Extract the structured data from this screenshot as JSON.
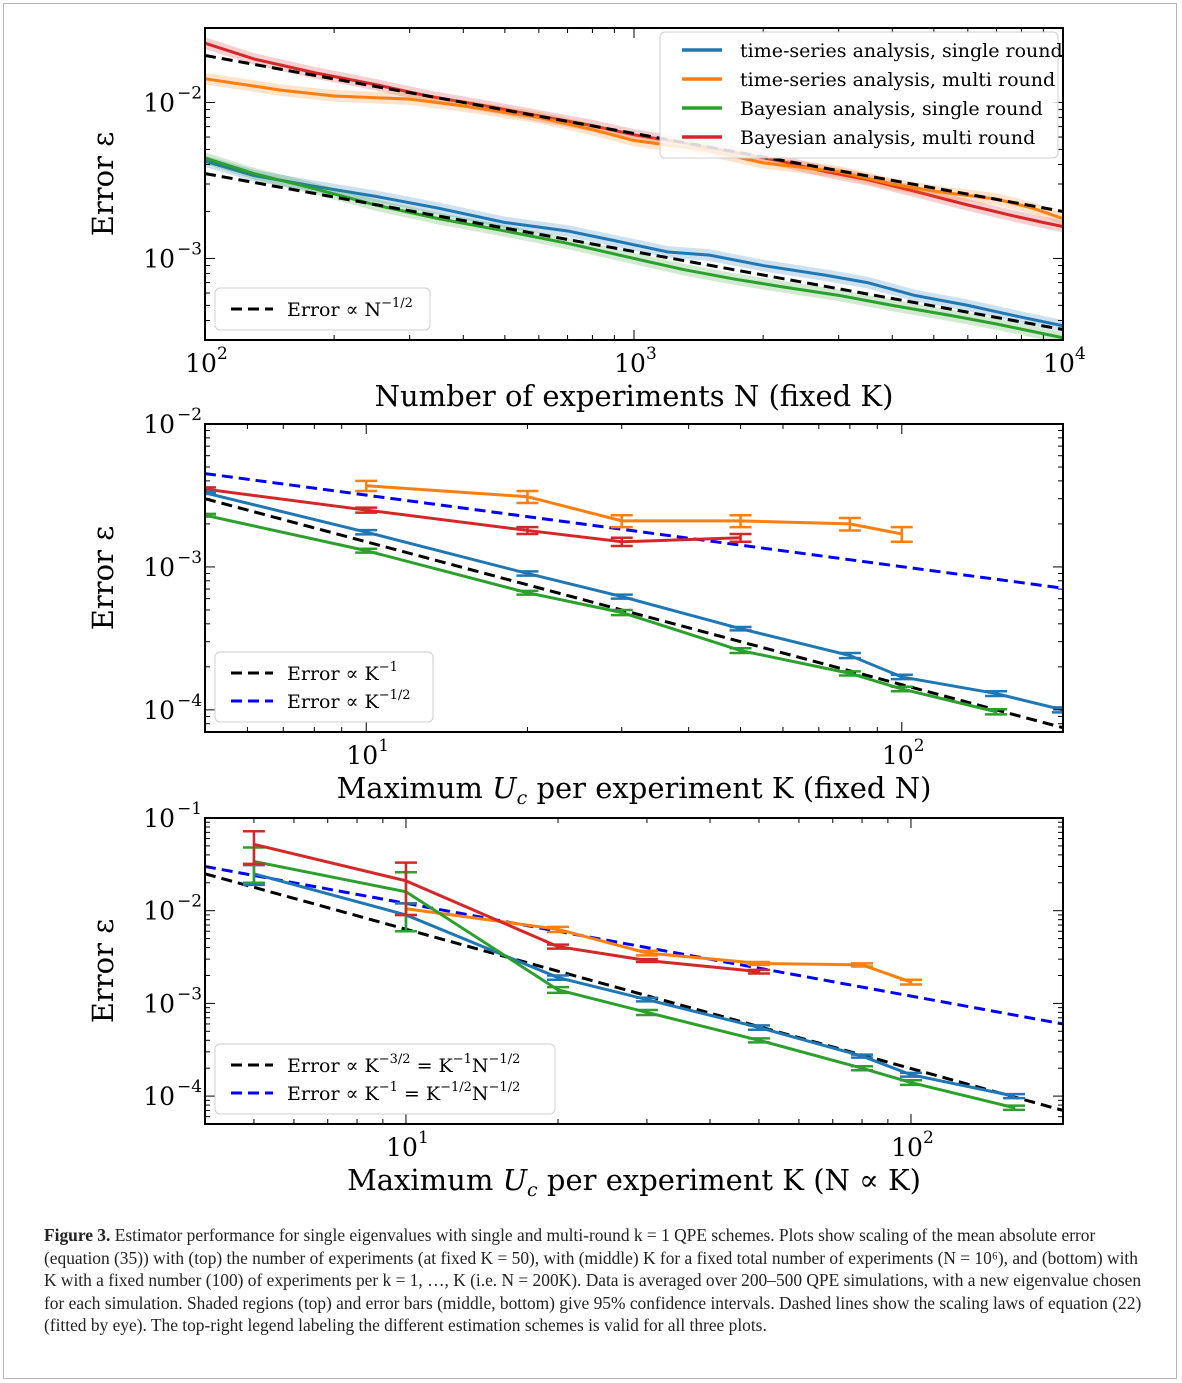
{
  "legend_series": {
    "ts_single": {
      "label": "time-series analysis, single round",
      "color": "#1f77b4"
    },
    "ts_multi": {
      "label": "time-series analysis, multi round",
      "color": "#ff7f0e"
    },
    "bay_single": {
      "label": "Bayesian analysis, single round",
      "color": "#2ca02c"
    },
    "bay_multi": {
      "label": "Bayesian analysis, multi round",
      "color": "#d62728"
    }
  },
  "chart_data": [
    {
      "id": "top",
      "type": "line",
      "xscale": "log",
      "yscale": "log",
      "xlim": [
        100,
        10000
      ],
      "ylim": [
        0.0003,
        0.03
      ],
      "xlabel": "Number of experiments N (fixed K)",
      "ylabel": "Error ε",
      "xticks": [
        {
          "v": 100,
          "m": "10",
          "e": "2"
        },
        {
          "v": 1000,
          "m": "10",
          "e": "3"
        },
        {
          "v": 10000,
          "m": "10",
          "e": "4"
        }
      ],
      "yticks": [
        {
          "v": 0.001,
          "m": "10",
          "e": "−3"
        },
        {
          "v": 0.01,
          "m": "10",
          "e": "−2"
        }
      ],
      "legend": {
        "position": "top-right",
        "entries": [
          "ts_single",
          "ts_multi",
          "bay_single",
          "bay_multi"
        ]
      },
      "ref_legend": {
        "position": "bottom-left",
        "entries": [
          {
            "label": "Error ∝ N",
            "sup": "−1/2",
            "color": "#000000"
          }
        ]
      },
      "series": [
        {
          "key": "bay_multi",
          "shaded": true,
          "x": [
            100,
            130,
            180,
            250,
            330,
            450,
            600,
            800,
            1000,
            1300,
            1700,
            2200,
            2800,
            3500,
            4500,
            6000,
            7500,
            9000,
            10000
          ],
          "y": [
            0.024,
            0.019,
            0.0155,
            0.013,
            0.011,
            0.0095,
            0.0082,
            0.0071,
            0.0062,
            0.0055,
            0.0048,
            0.0042,
            0.0036,
            0.0032,
            0.0027,
            0.0022,
            0.0019,
            0.0017,
            0.0016
          ]
        },
        {
          "key": "ts_multi",
          "shaded": true,
          "x": [
            100,
            150,
            200,
            300,
            400,
            600,
            800,
            1000,
            1500,
            2000,
            3000,
            4000,
            5000,
            7000,
            8500,
            10000
          ],
          "y": [
            0.0142,
            0.012,
            0.011,
            0.0105,
            0.0095,
            0.008,
            0.0067,
            0.0057,
            0.0049,
            0.0041,
            0.0036,
            0.003,
            0.0027,
            0.0024,
            0.0021,
            0.0018
          ]
        },
        {
          "key": "ts_single",
          "shaded": true,
          "x": [
            100,
            130,
            180,
            250,
            350,
            500,
            700,
            900,
            1200,
            1500,
            2000,
            2800,
            3500,
            4500,
            6000,
            8000,
            10000
          ],
          "y": [
            0.0042,
            0.0034,
            0.0029,
            0.0025,
            0.0021,
            0.0017,
            0.0015,
            0.0013,
            0.0011,
            0.00105,
            0.0009,
            0.00078,
            0.0007,
            0.00058,
            0.0005,
            0.00042,
            0.00037
          ]
        },
        {
          "key": "bay_single",
          "shaded": true,
          "x": [
            100,
            130,
            180,
            250,
            350,
            500,
            700,
            1000,
            1300,
            1700,
            2200,
            3000,
            4000,
            5500,
            7000,
            8500,
            10000
          ],
          "y": [
            0.0044,
            0.0035,
            0.0028,
            0.0022,
            0.0018,
            0.0015,
            0.00125,
            0.001,
            0.00085,
            0.00074,
            0.00066,
            0.00058,
            0.0005,
            0.00043,
            0.00038,
            0.00034,
            0.00031
          ]
        },
        {
          "key": "ref",
          "color": "#000000",
          "dash": true,
          "x": [
            100,
            10000
          ],
          "y": [
            0.02,
            0.002
          ]
        },
        {
          "key": "ref",
          "color": "#000000",
          "dash": true,
          "x": [
            100,
            10000
          ],
          "y": [
            0.0035,
            0.00035
          ]
        }
      ]
    },
    {
      "id": "middle",
      "type": "line",
      "xscale": "log",
      "yscale": "log",
      "xlim": [
        5,
        200
      ],
      "ylim": [
        7e-05,
        0.01
      ],
      "xlabel": "Maximum U_c per experiment K (fixed N)",
      "ylabel": "Error ε",
      "xticks": [
        {
          "v": 10,
          "m": "10",
          "e": "1"
        },
        {
          "v": 100,
          "m": "10",
          "e": "2"
        }
      ],
      "yticks": [
        {
          "v": 0.0001,
          "m": "10",
          "e": "−4"
        },
        {
          "v": 0.001,
          "m": "10",
          "e": "−3"
        },
        {
          "v": 0.01,
          "m": "10",
          "e": "−2"
        }
      ],
      "ref_legend": {
        "position": "bottom-left",
        "entries": [
          {
            "label": "Error ∝ K",
            "sup": "−1",
            "color": "#000000"
          },
          {
            "label": "Error ∝ K",
            "sup": "−1/2",
            "color": "#0000ff"
          }
        ]
      },
      "series": [
        {
          "key": "ref",
          "color": "#0000ff",
          "dash": true,
          "x": [
            5,
            200
          ],
          "y": [
            0.0045,
            0.00071
          ]
        },
        {
          "key": "ref",
          "color": "#000000",
          "dash": true,
          "x": [
            5,
            200
          ],
          "y": [
            0.003,
            7.5e-05
          ]
        },
        {
          "key": "ts_multi",
          "errorbars": true,
          "x": [
            10,
            20,
            30,
            50,
            80,
            100
          ],
          "y": [
            0.0037,
            0.0031,
            0.0021,
            0.0021,
            0.002,
            0.0017
          ],
          "err": [
            0.0003,
            0.0003,
            0.0002,
            0.0002,
            0.0002,
            0.0002
          ]
        },
        {
          "key": "bay_multi",
          "errorbars": true,
          "x": [
            5,
            10,
            20,
            30,
            50
          ],
          "y": [
            0.0035,
            0.0025,
            0.0018,
            0.0015,
            0.0016
          ],
          "err": [
            0.0001,
            0.0001,
            0.0001,
            0.0001,
            0.0001
          ]
        },
        {
          "key": "ts_single",
          "errorbars": true,
          "x": [
            5,
            10,
            20,
            30,
            50,
            80,
            100,
            150,
            200
          ],
          "y": [
            0.0033,
            0.00175,
            0.0009,
            0.00062,
            0.00037,
            0.00024,
            0.00017,
            0.00013,
            0.0001
          ],
          "err": [
            6e-05,
            6e-05,
            3e-05,
            2e-05,
            1e-05,
            1e-05,
            6e-06,
            5e-06,
            4e-06
          ]
        },
        {
          "key": "bay_single",
          "errorbars": true,
          "x": [
            5,
            10,
            20,
            30,
            50,
            80,
            100,
            150
          ],
          "y": [
            0.0023,
            0.0013,
            0.00066,
            0.00048,
            0.00026,
            0.00018,
            0.00014,
            9.7e-05
          ],
          "err": [
            5e-05,
            4e-05,
            2e-05,
            2e-05,
            1e-05,
            6e-06,
            5e-06,
            4e-06
          ]
        }
      ]
    },
    {
      "id": "bottom",
      "type": "line",
      "xscale": "log",
      "yscale": "log",
      "xlim": [
        4,
        200
      ],
      "ylim": [
        5e-05,
        0.1
      ],
      "xlabel": "Maximum U_c per experiment K (N ∝ K)",
      "ylabel": "Error ε",
      "xticks": [
        {
          "v": 10,
          "m": "10",
          "e": "1"
        },
        {
          "v": 100,
          "m": "10",
          "e": "2"
        }
      ],
      "yticks": [
        {
          "v": 0.0001,
          "m": "10",
          "e": "−4"
        },
        {
          "v": 0.001,
          "m": "10",
          "e": "−3"
        },
        {
          "v": 0.01,
          "m": "10",
          "e": "−2"
        },
        {
          "v": 0.1,
          "m": "10",
          "e": "−1"
        }
      ],
      "ref_legend": {
        "position": "bottom-left",
        "entries": [
          {
            "label": "Error ∝ K",
            "sup": "−3/2",
            "rest": " = K",
            "sup2": "−1",
            "rest2": "N",
            "sup3": "−1/2",
            "color": "#000000"
          },
          {
            "label": "Error ∝ K",
            "sup": "−1",
            "rest": " = K",
            "sup2": "−1/2",
            "rest2": "N",
            "sup3": "−1/2",
            "color": "#0000ff"
          }
        ]
      },
      "series": [
        {
          "key": "ref",
          "color": "#0000ff",
          "dash": true,
          "x": [
            4,
            200
          ],
          "y": [
            0.03,
            0.0006
          ]
        },
        {
          "key": "ref",
          "color": "#000000",
          "dash": true,
          "x": [
            4,
            200
          ],
          "y": [
            0.025,
            7e-05
          ]
        },
        {
          "key": "ts_multi",
          "errorbars": true,
          "x": [
            10,
            20,
            30,
            50,
            80,
            100
          ],
          "y": [
            0.0105,
            0.0063,
            0.0035,
            0.0027,
            0.0026,
            0.0017
          ],
          "err": [
            0.0015,
            0.0004,
            0.0002,
            0.0001,
            0.0001,
            0.0001
          ]
        },
        {
          "key": "ts_single",
          "errorbars": true,
          "x": [
            5,
            10,
            20,
            30,
            50,
            80,
            100,
            160
          ],
          "y": [
            0.025,
            0.009,
            0.0019,
            0.0011,
            0.00055,
            0.00027,
            0.00017,
            0.0001
          ],
          "err": [
            0.006,
            0.003,
            0.0001,
            5e-05,
            3e-05,
            1e-05,
            8e-06,
            5e-06
          ]
        },
        {
          "key": "bay_single",
          "errorbars": true,
          "x": [
            5,
            10,
            20,
            30,
            50,
            80,
            100,
            160
          ],
          "y": [
            0.034,
            0.016,
            0.0014,
            0.0008,
            0.0004,
            0.0002,
            0.00014,
            7.5e-05
          ],
          "err": [
            0.014,
            0.01,
            0.0001,
            5e-05,
            2e-05,
            1e-05,
            8e-06,
            4e-06
          ]
        },
        {
          "key": "bay_multi",
          "errorbars": true,
          "x": [
            5,
            10,
            20,
            30,
            50
          ],
          "y": [
            0.052,
            0.021,
            0.0041,
            0.0029,
            0.0022
          ],
          "err": [
            0.02,
            0.012,
            0.0002,
            0.0001,
            0.0001
          ]
        }
      ]
    }
  ],
  "caption": {
    "label": "Figure 3.",
    "text": "Estimator performance for single eigenvalues with single and multi-round k = 1 QPE schemes. Plots show scaling of the mean absolute error (equation (35)) with (top) the number of experiments (at fixed K = 50), with (middle) K for a fixed total number of experiments (N = 10⁶), and (bottom) with K with a fixed number (100) of experiments per k = 1, …, K (i.e. N = 200K). Data is averaged over 200–500 QPE simulations, with a new eigenvalue chosen for each simulation. Shaded regions (top) and error bars (middle, bottom) give 95% confidence intervals. Dashed lines show the scaling laws of equation (22) (fitted by eye). The top-right legend labeling the different estimation schemes is valid for all three plots."
  }
}
